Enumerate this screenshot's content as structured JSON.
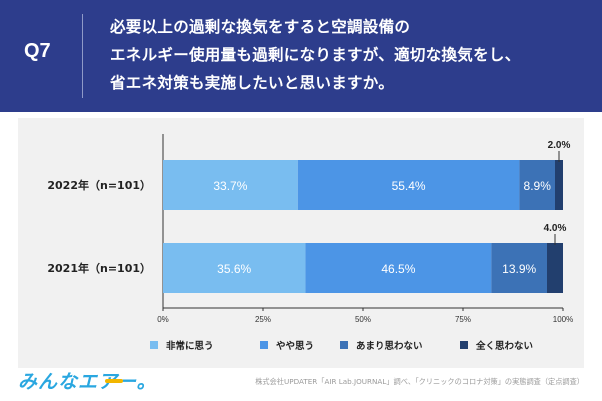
{
  "question": {
    "number": "Q7",
    "lines": [
      "必要以上の過剰な換気をすると空調設備の",
      "エネルギー使用量も過剰になりますが、適切な換気をし、",
      "省エネ対策も実施したいと思いますか。"
    ]
  },
  "chart_data": {
    "type": "bar",
    "orientation": "horizontal",
    "stacked": true,
    "categories": [
      "2022年（n=101）",
      "2021年（n=101）"
    ],
    "series": [
      {
        "name": "非常に思う",
        "values": [
          33.7,
          35.6
        ],
        "labels": [
          "33.7%",
          "35.6%"
        ],
        "color": "#79bdf0"
      },
      {
        "name": "やや思う",
        "values": [
          55.4,
          46.5
        ],
        "labels": [
          "55.4%",
          "46.5%"
        ],
        "color": "#4c95e6"
      },
      {
        "name": "あまり思わない",
        "values": [
          8.9,
          13.9
        ],
        "labels": [
          "8.9%",
          "13.9%"
        ],
        "color": "#3c72b6"
      },
      {
        "name": "全く思わない",
        "values": [
          2.0,
          4.0
        ],
        "labels": [
          "2.0%",
          "4.0%"
        ],
        "color": "#223f6e"
      }
    ],
    "xlim": [
      0,
      100
    ],
    "xticks": [
      "0%",
      "25%",
      "50%",
      "75%",
      "100%"
    ],
    "legend_position": "bottom"
  },
  "footer": {
    "brand": "みんなエアー。",
    "source": "株式会社UPDATER「AIR Lab.JOURNAL」調べ、「クリニックのコロナ対策」の実態調査（定点調査）"
  }
}
